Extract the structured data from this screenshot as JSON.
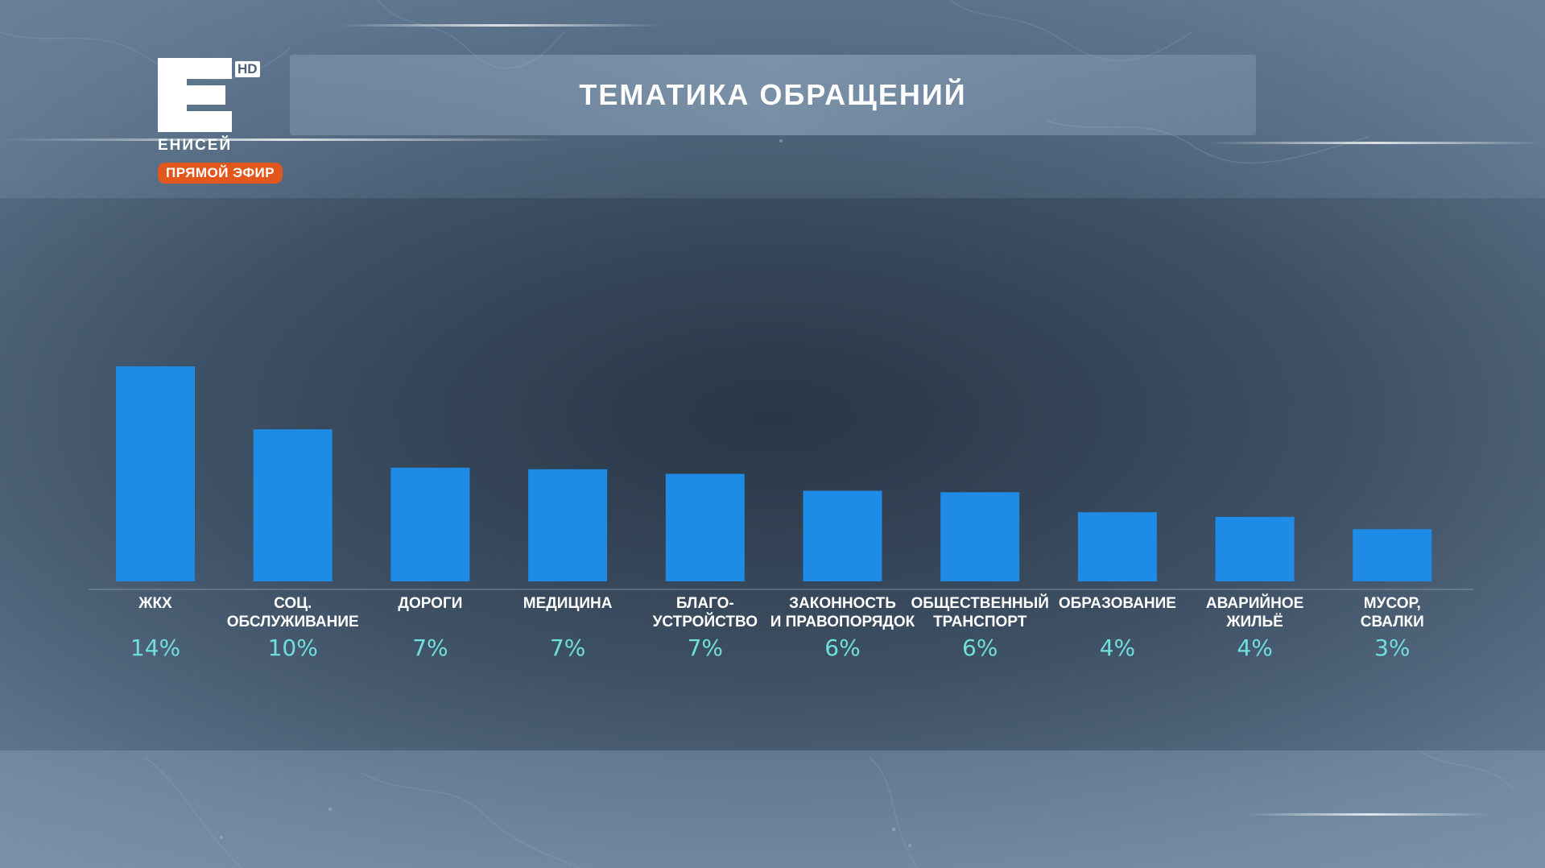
{
  "header": {
    "title": "ТЕМАТИКА ОБРАЩЕНИЙ"
  },
  "logo": {
    "letter": "Е",
    "hd": "HD",
    "name": "ЕНИСЕЙ",
    "live": "ПРЯМОЙ ЭФИР"
  },
  "colors": {
    "bar": "#1e8ce6",
    "value_text": "#6fe0dc",
    "live_badge": "#e2571c"
  },
  "chart_data": {
    "type": "bar",
    "title": "ТЕМАТИКА ОБРАЩЕНИЙ",
    "categories": [
      [
        "ЖКХ"
      ],
      [
        "СОЦ.",
        "ОБСЛУЖИВАНИЕ"
      ],
      [
        "ДОРОГИ"
      ],
      [
        "МЕДИЦИНА"
      ],
      [
        "БЛАГО-",
        "УСТРОЙСТВО"
      ],
      [
        "ЗАКОННОСТЬ",
        "И ПРАВОПОРЯДОК"
      ],
      [
        "ОБЩЕСТВЕННЫЙ",
        "ТРАНСПОРТ"
      ],
      [
        "ОБРАЗОВАНИЕ"
      ],
      [
        "АВАРИЙНОЕ",
        "ЖИЛЬЁ"
      ],
      [
        "МУСОР,",
        "СВАЛКИ"
      ]
    ],
    "values": [
      14,
      10,
      7,
      7,
      7,
      6,
      6,
      4,
      4,
      3
    ],
    "value_labels": [
      "14%",
      "10%",
      "7%",
      "7%",
      "7%",
      "6%",
      "6%",
      "4%",
      "4%",
      "3%"
    ],
    "bar_heights_relative": [
      14,
      9.9,
      7.4,
      7.3,
      7.0,
      5.9,
      5.8,
      4.5,
      4.2,
      3.4
    ],
    "unit": "%",
    "ylim": [
      0,
      14
    ],
    "grid": false,
    "legend": "none"
  }
}
